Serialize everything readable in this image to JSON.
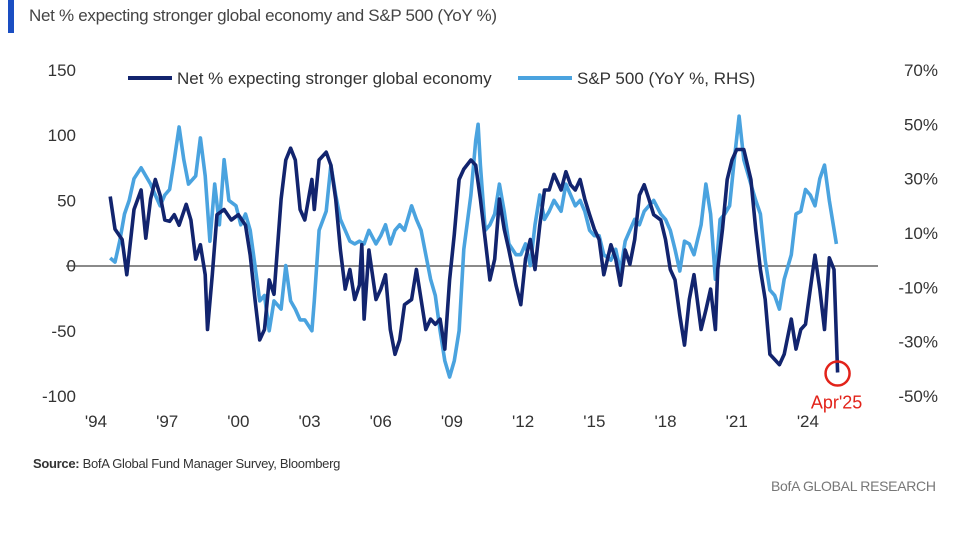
{
  "subtitle": "Net % expecting stronger global economy and S&P 500 (YoY %)",
  "source_label": "Source:",
  "source_text": "BofA Global Fund Manager Survey, Bloomberg",
  "brand": "BofA GLOBAL RESEARCH",
  "colors": {
    "dark_series": "#12246e",
    "light_series": "#4aa3df",
    "annotation": "#e2231a",
    "accent": "#1a4ec2"
  },
  "chart_data": {
    "type": "line",
    "legend_position": "top",
    "grid": false,
    "x_tick_labels": [
      "'94",
      "'97",
      "'00",
      "'03",
      "'06",
      "'09",
      "'12",
      "'15",
      "'18",
      "'21",
      "'24"
    ],
    "x_ticks": [
      1994,
      1997,
      2000,
      2003,
      2006,
      2009,
      2012,
      2015,
      2018,
      2021,
      2024
    ],
    "xlim": [
      1994,
      2025.5
    ],
    "ylim_left": [
      -100,
      150
    ],
    "ylim_right": [
      -50,
      70
    ],
    "y_left_ticks": [
      150,
      100,
      50,
      0,
      -50,
      -100
    ],
    "y_left_tick_labels": [
      "150",
      "100",
      "50",
      "0",
      "-50",
      "-100"
    ],
    "y_right_ticks": [
      70,
      50,
      30,
      10,
      -10,
      -30,
      -50
    ],
    "y_right_tick_labels": [
      "70%",
      "50%",
      "30%",
      "10%",
      "-10%",
      "-30%",
      "-50%"
    ],
    "annotation": {
      "label": "Apr'25",
      "x": 2025.25,
      "y": -82
    },
    "series": [
      {
        "name": "Net % expecting stronger global economy",
        "axis": "left",
        "points": [
          [
            1994.6,
            53
          ],
          [
            1994.8,
            28
          ],
          [
            1995.1,
            20
          ],
          [
            1995.3,
            -7
          ],
          [
            1995.6,
            43
          ],
          [
            1995.9,
            58
          ],
          [
            1996.1,
            21
          ],
          [
            1996.3,
            51
          ],
          [
            1996.5,
            66
          ],
          [
            1996.7,
            54
          ],
          [
            1996.9,
            35
          ],
          [
            1997.1,
            34
          ],
          [
            1997.3,
            39
          ],
          [
            1997.5,
            31
          ],
          [
            1997.8,
            47
          ],
          [
            1998.0,
            35
          ],
          [
            1998.2,
            5
          ],
          [
            1998.4,
            16
          ],
          [
            1998.6,
            -7
          ],
          [
            1998.7,
            -49
          ],
          [
            1998.9,
            -7
          ],
          [
            1999.1,
            39
          ],
          [
            1999.4,
            43
          ],
          [
            1999.7,
            35
          ],
          [
            2000.0,
            39
          ],
          [
            2000.3,
            31
          ],
          [
            2000.5,
            8
          ],
          [
            2000.7,
            -26
          ],
          [
            2000.9,
            -57
          ],
          [
            2001.1,
            -49
          ],
          [
            2001.3,
            -11
          ],
          [
            2001.5,
            -22
          ],
          [
            2001.8,
            51
          ],
          [
            2002.0,
            81
          ],
          [
            2002.2,
            90
          ],
          [
            2002.4,
            81
          ],
          [
            2002.6,
            43
          ],
          [
            2002.8,
            35
          ],
          [
            2003.1,
            66
          ],
          [
            2003.2,
            43
          ],
          [
            2003.4,
            81
          ],
          [
            2003.7,
            87
          ],
          [
            2003.9,
            77
          ],
          [
            2004.1,
            51
          ],
          [
            2004.3,
            12
          ],
          [
            2004.5,
            -18
          ],
          [
            2004.7,
            -3
          ],
          [
            2004.9,
            -26
          ],
          [
            2005.1,
            -15
          ],
          [
            2005.2,
            16
          ],
          [
            2005.3,
            -41
          ],
          [
            2005.5,
            12
          ],
          [
            2005.8,
            -26
          ],
          [
            2006.0,
            -18
          ],
          [
            2006.2,
            -7
          ],
          [
            2006.4,
            -49
          ],
          [
            2006.6,
            -68
          ],
          [
            2006.8,
            -57
          ],
          [
            2007.0,
            -30
          ],
          [
            2007.3,
            -26
          ],
          [
            2007.5,
            -3
          ],
          [
            2007.7,
            -26
          ],
          [
            2007.9,
            -49
          ],
          [
            2008.1,
            -41
          ],
          [
            2008.3,
            -45
          ],
          [
            2008.5,
            -41
          ],
          [
            2008.7,
            -64
          ],
          [
            2008.9,
            -11
          ],
          [
            2009.1,
            24
          ],
          [
            2009.3,
            66
          ],
          [
            2009.5,
            74
          ],
          [
            2009.8,
            81
          ],
          [
            2010.0,
            77
          ],
          [
            2010.2,
            51
          ],
          [
            2010.4,
            20
          ],
          [
            2010.6,
            -11
          ],
          [
            2010.8,
            5
          ],
          [
            2011.0,
            51
          ],
          [
            2011.2,
            28
          ],
          [
            2011.4,
            12
          ],
          [
            2011.7,
            -15
          ],
          [
            2011.9,
            -30
          ],
          [
            2012.1,
            5
          ],
          [
            2012.3,
            20
          ],
          [
            2012.5,
            -3
          ],
          [
            2012.7,
            31
          ],
          [
            2012.9,
            58
          ],
          [
            2013.1,
            58
          ],
          [
            2013.3,
            70
          ],
          [
            2013.6,
            58
          ],
          [
            2013.8,
            72
          ],
          [
            2014.0,
            62
          ],
          [
            2014.2,
            58
          ],
          [
            2014.4,
            66
          ],
          [
            2014.6,
            51
          ],
          [
            2014.8,
            39
          ],
          [
            2015.0,
            28
          ],
          [
            2015.2,
            20
          ],
          [
            2015.4,
            -7
          ],
          [
            2015.7,
            16
          ],
          [
            2015.9,
            5
          ],
          [
            2016.1,
            -15
          ],
          [
            2016.3,
            12
          ],
          [
            2016.5,
            1
          ],
          [
            2016.7,
            20
          ],
          [
            2016.9,
            54
          ],
          [
            2017.1,
            62
          ],
          [
            2017.3,
            51
          ],
          [
            2017.5,
            39
          ],
          [
            2017.8,
            35
          ],
          [
            2018.0,
            20
          ],
          [
            2018.2,
            -3
          ],
          [
            2018.4,
            -11
          ],
          [
            2018.6,
            -38
          ],
          [
            2018.8,
            -61
          ],
          [
            2019.0,
            -26
          ],
          [
            2019.2,
            -7
          ],
          [
            2019.5,
            -49
          ],
          [
            2019.7,
            -34
          ],
          [
            2019.9,
            -18
          ],
          [
            2020.1,
            -49
          ],
          [
            2020.2,
            -3
          ],
          [
            2020.4,
            28
          ],
          [
            2020.6,
            66
          ],
          [
            2020.8,
            81
          ],
          [
            2021.0,
            89
          ],
          [
            2021.3,
            89
          ],
          [
            2021.6,
            66
          ],
          [
            2021.8,
            28
          ],
          [
            2022.0,
            -3
          ],
          [
            2022.2,
            -26
          ],
          [
            2022.4,
            -68
          ],
          [
            2022.6,
            -72
          ],
          [
            2022.8,
            -76
          ],
          [
            2023.0,
            -68
          ],
          [
            2023.3,
            -41
          ],
          [
            2023.5,
            -64
          ],
          [
            2023.7,
            -49
          ],
          [
            2023.9,
            -45
          ],
          [
            2024.1,
            -18
          ],
          [
            2024.3,
            8
          ],
          [
            2024.5,
            -18
          ],
          [
            2024.7,
            -49
          ],
          [
            2024.9,
            6
          ],
          [
            2025.1,
            -3
          ],
          [
            2025.25,
            -82
          ]
        ]
      },
      {
        "name": "S&P 500 (YoY %, RHS)",
        "axis": "right",
        "points": [
          [
            1994.6,
            0.8
          ],
          [
            1994.8,
            -0.7
          ],
          [
            1995.0,
            7
          ],
          [
            1995.2,
            17
          ],
          [
            1995.4,
            22
          ],
          [
            1995.6,
            30
          ],
          [
            1995.9,
            34
          ],
          [
            1996.1,
            31
          ],
          [
            1996.3,
            28
          ],
          [
            1996.5,
            24
          ],
          [
            1996.7,
            20
          ],
          [
            1996.9,
            24
          ],
          [
            1997.1,
            26
          ],
          [
            1997.3,
            37
          ],
          [
            1997.5,
            49
          ],
          [
            1997.7,
            37
          ],
          [
            1997.9,
            28
          ],
          [
            1998.2,
            31
          ],
          [
            1998.4,
            45
          ],
          [
            1998.6,
            31
          ],
          [
            1998.8,
            7
          ],
          [
            1999.0,
            28
          ],
          [
            1999.2,
            13
          ],
          [
            1999.4,
            37
          ],
          [
            1999.6,
            22
          ],
          [
            1999.9,
            20
          ],
          [
            2000.1,
            13
          ],
          [
            2000.3,
            17
          ],
          [
            2000.5,
            11
          ],
          [
            2000.7,
            -2
          ],
          [
            2000.9,
            -15
          ],
          [
            2001.1,
            -13
          ],
          [
            2001.3,
            -26
          ],
          [
            2001.5,
            -15
          ],
          [
            2001.8,
            -18
          ],
          [
            2002.0,
            -2
          ],
          [
            2002.2,
            -15
          ],
          [
            2002.4,
            -18
          ],
          [
            2002.6,
            -22
          ],
          [
            2002.8,
            -22
          ],
          [
            2003.1,
            -26
          ],
          [
            2003.2,
            -15
          ],
          [
            2003.4,
            11
          ],
          [
            2003.7,
            18
          ],
          [
            2003.9,
            35
          ],
          [
            2004.1,
            24
          ],
          [
            2004.3,
            15
          ],
          [
            2004.5,
            11
          ],
          [
            2004.7,
            7
          ],
          [
            2004.9,
            6
          ],
          [
            2005.1,
            7
          ],
          [
            2005.3,
            6
          ],
          [
            2005.5,
            11
          ],
          [
            2005.8,
            6
          ],
          [
            2006.0,
            9
          ],
          [
            2006.2,
            13
          ],
          [
            2006.4,
            6
          ],
          [
            2006.6,
            11
          ],
          [
            2006.8,
            13
          ],
          [
            2007.0,
            11
          ],
          [
            2007.3,
            20
          ],
          [
            2007.5,
            15
          ],
          [
            2007.7,
            11
          ],
          [
            2007.9,
            2
          ],
          [
            2008.1,
            -7
          ],
          [
            2008.3,
            -13
          ],
          [
            2008.5,
            -26
          ],
          [
            2008.7,
            -37
          ],
          [
            2008.9,
            -43
          ],
          [
            2009.1,
            -37
          ],
          [
            2009.3,
            -26
          ],
          [
            2009.5,
            4
          ],
          [
            2009.8,
            24
          ],
          [
            2010.0,
            44
          ],
          [
            2010.1,
            50
          ],
          [
            2010.2,
            35
          ],
          [
            2010.4,
            11
          ],
          [
            2010.6,
            13
          ],
          [
            2010.8,
            17
          ],
          [
            2011.0,
            28
          ],
          [
            2011.2,
            18
          ],
          [
            2011.4,
            6
          ],
          [
            2011.7,
            2
          ],
          [
            2011.9,
            2
          ],
          [
            2012.1,
            6
          ],
          [
            2012.3,
            -2
          ],
          [
            2012.5,
            13
          ],
          [
            2012.7,
            24
          ],
          [
            2012.9,
            15
          ],
          [
            2013.1,
            18
          ],
          [
            2013.3,
            22
          ],
          [
            2013.6,
            18
          ],
          [
            2013.8,
            28
          ],
          [
            2014.0,
            24
          ],
          [
            2014.2,
            20
          ],
          [
            2014.4,
            22
          ],
          [
            2014.6,
            18
          ],
          [
            2014.8,
            11
          ],
          [
            2015.0,
            9
          ],
          [
            2015.2,
            9
          ],
          [
            2015.4,
            2
          ],
          [
            2015.7,
            0
          ],
          [
            2015.9,
            4
          ],
          [
            2016.1,
            -4
          ],
          [
            2016.3,
            7
          ],
          [
            2016.5,
            11
          ],
          [
            2016.7,
            15
          ],
          [
            2016.9,
            13
          ],
          [
            2017.1,
            18
          ],
          [
            2017.3,
            20
          ],
          [
            2017.5,
            22
          ],
          [
            2017.8,
            17
          ],
          [
            2018.0,
            15
          ],
          [
            2018.2,
            11
          ],
          [
            2018.4,
            4
          ],
          [
            2018.6,
            -4
          ],
          [
            2018.8,
            7
          ],
          [
            2019.0,
            6
          ],
          [
            2019.2,
            2
          ],
          [
            2019.5,
            13
          ],
          [
            2019.7,
            28
          ],
          [
            2019.9,
            17
          ],
          [
            2020.1,
            -7
          ],
          [
            2020.3,
            15
          ],
          [
            2020.5,
            17
          ],
          [
            2020.7,
            20
          ],
          [
            2020.9,
            37
          ],
          [
            2021.1,
            53
          ],
          [
            2021.3,
            37
          ],
          [
            2021.6,
            28
          ],
          [
            2021.8,
            22
          ],
          [
            2022.0,
            17
          ],
          [
            2022.2,
            0
          ],
          [
            2022.4,
            -11
          ],
          [
            2022.6,
            -13
          ],
          [
            2022.8,
            -18
          ],
          [
            2023.0,
            -7
          ],
          [
            2023.3,
            2
          ],
          [
            2023.5,
            17
          ],
          [
            2023.7,
            18
          ],
          [
            2023.9,
            26
          ],
          [
            2024.1,
            24
          ],
          [
            2024.3,
            20
          ],
          [
            2024.5,
            30
          ],
          [
            2024.7,
            35
          ],
          [
            2024.9,
            22
          ],
          [
            2025.2,
            6
          ]
        ]
      }
    ]
  }
}
